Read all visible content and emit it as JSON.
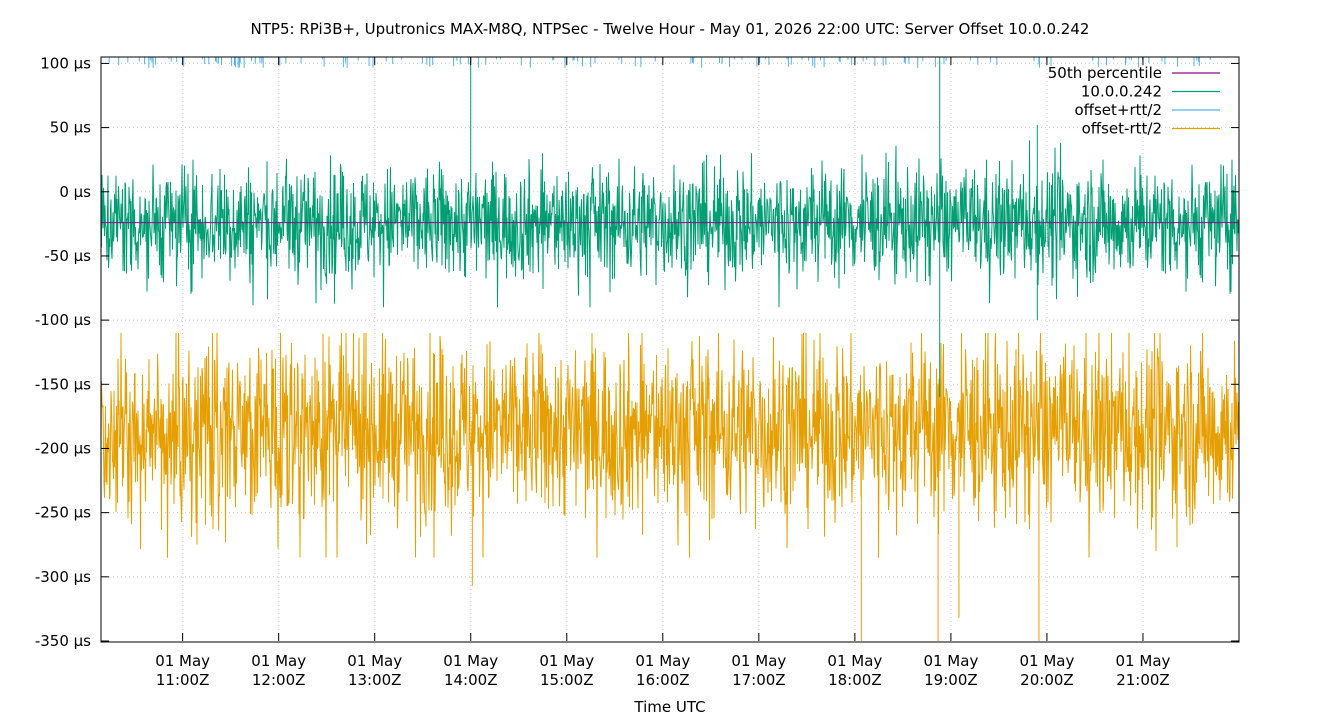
{
  "chart_data": {
    "type": "line",
    "title": "NTP5: RPi3B+, Uputronics MAX-M8Q, NTPSec - Twelve Hour - May 01, 2026 22:00 UTC: Server Offset 10.0.0.242",
    "xlabel": "Time UTC",
    "ylabel": "",
    "xlim": [
      "2026-05-01 10:09Z",
      "2026-05-01 22:00Z"
    ],
    "ylim": [
      -350,
      105
    ],
    "y_unit": "µs",
    "y_ticks": [
      100,
      50,
      0,
      -50,
      -100,
      -150,
      -200,
      -250,
      -300,
      -350
    ],
    "y_tick_labels": [
      "100 µs",
      "50 µs",
      "0 µs",
      "-50 µs",
      "-100 µs",
      "-150 µs",
      "-200 µs",
      "-250 µs",
      "-300 µs",
      "-350 µs"
    ],
    "x_ticks": [
      {
        "t": "2026-05-01 11:00Z",
        "l1": "01 May",
        "l2": "11:00Z"
      },
      {
        "t": "2026-05-01 12:00Z",
        "l1": "01 May",
        "l2": "12:00Z"
      },
      {
        "t": "2026-05-01 13:00Z",
        "l1": "01 May",
        "l2": "13:00Z"
      },
      {
        "t": "2026-05-01 14:00Z",
        "l1": "01 May",
        "l2": "14:00Z"
      },
      {
        "t": "2026-05-01 15:00Z",
        "l1": "01 May",
        "l2": "15:00Z"
      },
      {
        "t": "2026-05-01 16:00Z",
        "l1": "01 May",
        "l2": "16:00Z"
      },
      {
        "t": "2026-05-01 17:00Z",
        "l1": "01 May",
        "l2": "17:00Z"
      },
      {
        "t": "2026-05-01 18:00Z",
        "l1": "01 May",
        "l2": "18:00Z"
      },
      {
        "t": "2026-05-01 19:00Z",
        "l1": "01 May",
        "l2": "19:00Z"
      },
      {
        "t": "2026-05-01 20:00Z",
        "l1": "01 May",
        "l2": "20:00Z"
      },
      {
        "t": "2026-05-01 21:00Z",
        "l1": "01 May",
        "l2": "21:00Z"
      }
    ],
    "grid": true,
    "legend_position": "top-right",
    "series": [
      {
        "name": "50th percentile",
        "color": "#8b0a88",
        "center": -24,
        "constant": true
      },
      {
        "name": "10.0.0.242",
        "color": "#009e73",
        "center": -24,
        "spread": 22,
        "min": -90,
        "max": 40,
        "spikes": [
          {
            "t": "2026-05-01 14:00Z",
            "low": -20,
            "high": 105
          },
          {
            "t": "2026-05-01 18:53Z",
            "low": -160,
            "high": 105
          },
          {
            "t": "2026-05-01 19:54Z",
            "low": -100,
            "high": 52
          }
        ]
      },
      {
        "name": "offset+rtt/2",
        "color": "#56b4e9",
        "level": 105
      },
      {
        "name": "offset-rtt/2",
        "color": "#e69f00",
        "center": -185,
        "spread": 35,
        "min": -285,
        "max": -110,
        "spikes": [
          {
            "t": "2026-05-01 14:01Z",
            "low": -307,
            "high": -190
          },
          {
            "t": "2026-05-01 18:04Z",
            "low": -350,
            "high": -190
          },
          {
            "t": "2026-05-01 18:52Z",
            "low": -350,
            "high": -150
          },
          {
            "t": "2026-05-01 19:05Z",
            "low": -332,
            "high": -190
          },
          {
            "t": "2026-05-01 19:55Z",
            "low": -350,
            "high": -190
          }
        ]
      }
    ]
  }
}
